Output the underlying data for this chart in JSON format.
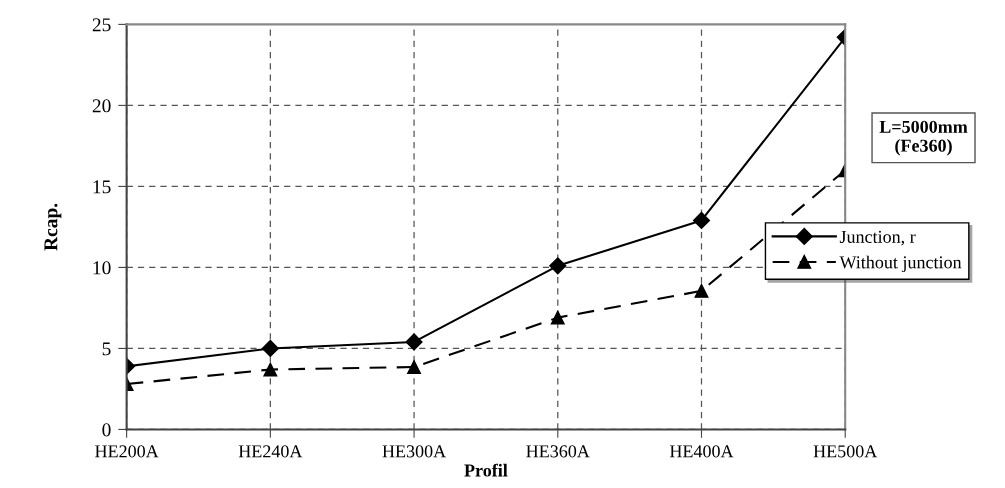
{
  "chart_data": {
    "type": "line",
    "xlabel": "Profil",
    "ylabel": "Rcap.",
    "categories": [
      "HE200A",
      "HE240A",
      "HE300A",
      "HE360A",
      "HE400A",
      "HE500A"
    ],
    "series": [
      {
        "name": "Junction, r",
        "color": "#000000",
        "marker": "diamond",
        "line_style": "solid",
        "values": [
          3.9,
          5.0,
          5.4,
          10.1,
          12.9,
          24.2
        ]
      },
      {
        "name": "Without junction",
        "color": "#000000",
        "marker": "triangle",
        "line_style": "dashed",
        "values": [
          2.8,
          3.7,
          3.85,
          6.9,
          8.55,
          16.0
        ]
      }
    ],
    "ylim": [
      0,
      25
    ],
    "yticks": [
      0,
      5,
      10,
      15,
      20,
      25
    ],
    "grid": true,
    "legend": "right",
    "annotations": [
      "L=5000mm\n(Fe360)"
    ]
  }
}
